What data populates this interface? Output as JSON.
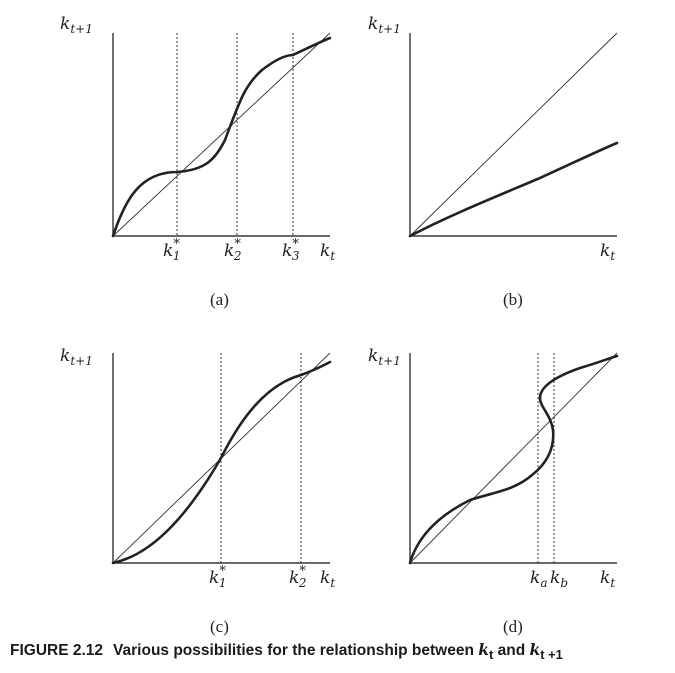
{
  "panels": {
    "a": {
      "label": "(a)",
      "ylabel": "k",
      "ylabel_sub": "t+1",
      "xlabel": "k",
      "xlabel_sub": "t",
      "markers": [
        {
          "base": "k",
          "sup": "*",
          "sub": "1"
        },
        {
          "base": "k",
          "sup": "*",
          "sub": "2"
        },
        {
          "base": "k",
          "sup": "*",
          "sub": "3"
        }
      ]
    },
    "b": {
      "label": "(b)",
      "ylabel": "k",
      "ylabel_sub": "t+1",
      "xlabel": "k",
      "xlabel_sub": "t"
    },
    "c": {
      "label": "(c)",
      "ylabel": "k",
      "ylabel_sub": "t+1",
      "xlabel": "k",
      "xlabel_sub": "t",
      "markers": [
        {
          "base": "k",
          "sup": "*",
          "sub": "1"
        },
        {
          "base": "k",
          "sup": "*",
          "sub": "2"
        }
      ]
    },
    "d": {
      "label": "(d)",
      "ylabel": "k",
      "ylabel_sub": "t+1",
      "xlabel": "k",
      "xlabel_sub": "t",
      "markers": [
        {
          "base": "k",
          "sub": "a"
        },
        {
          "base": "k",
          "sub": "b"
        }
      ]
    }
  },
  "caption": {
    "number": "FIGURE 2.12",
    "text_before": "Various possibilities for the relationship between ",
    "k_symbol": "k",
    "sub_t": "t",
    "and_text": " and ",
    "sub_t1": "t +1"
  }
}
